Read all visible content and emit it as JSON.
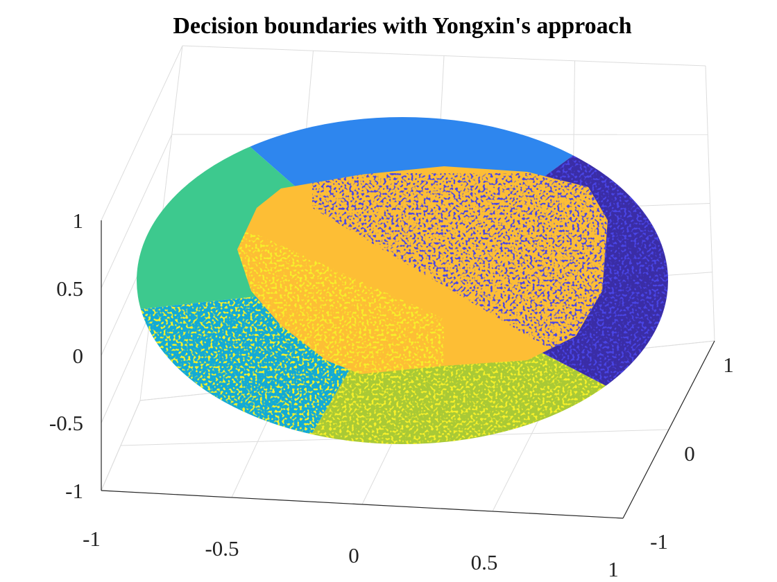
{
  "chart_data": {
    "type": "scatter",
    "subtype": "3d-scatter-disk-regions",
    "title": "Decision boundaries with Yongxin's approach",
    "xlabel": "",
    "ylabel": "",
    "zlabel": "",
    "xlim": [
      -1,
      1
    ],
    "ylim": [
      -1,
      1
    ],
    "zlim": [
      -1,
      1
    ],
    "xticks": [
      "-1",
      "-0.5",
      "0",
      "0.5",
      "1"
    ],
    "yticks": [
      "-1",
      "0",
      "1"
    ],
    "zticks": [
      "-1",
      "-0.5",
      "0",
      "0.5",
      "1"
    ],
    "grid": true,
    "view": "3d-perspective",
    "regions": [
      {
        "name": "",
        "color": "#2E86EE",
        "angle_start_deg": 50,
        "angle_end_deg": 125,
        "speckle": "#2E86EE"
      },
      {
        "name": "",
        "color": "#3DC98E",
        "angle_start_deg": 125,
        "angle_end_deg": 190,
        "speckle": "#3DC98E"
      },
      {
        "name": "",
        "color": "#12AAD6",
        "angle_start_deg": 190,
        "angle_end_deg": 250,
        "speckle": "#F6F02A"
      },
      {
        "name": "",
        "color": "#A9C936",
        "angle_start_deg": 250,
        "angle_end_deg": 320,
        "speckle": "#F6F02A"
      },
      {
        "name": "",
        "color": "#3A2DA6",
        "angle_start_deg": 320,
        "angle_end_deg": 410,
        "speckle": "#4A44E6"
      }
    ],
    "inner_region": {
      "name": "",
      "color": "#FDBE35",
      "radius_fraction": 0.68,
      "speckle_upper": "#4A44E6",
      "speckle_lower": "#F6F02A"
    }
  }
}
